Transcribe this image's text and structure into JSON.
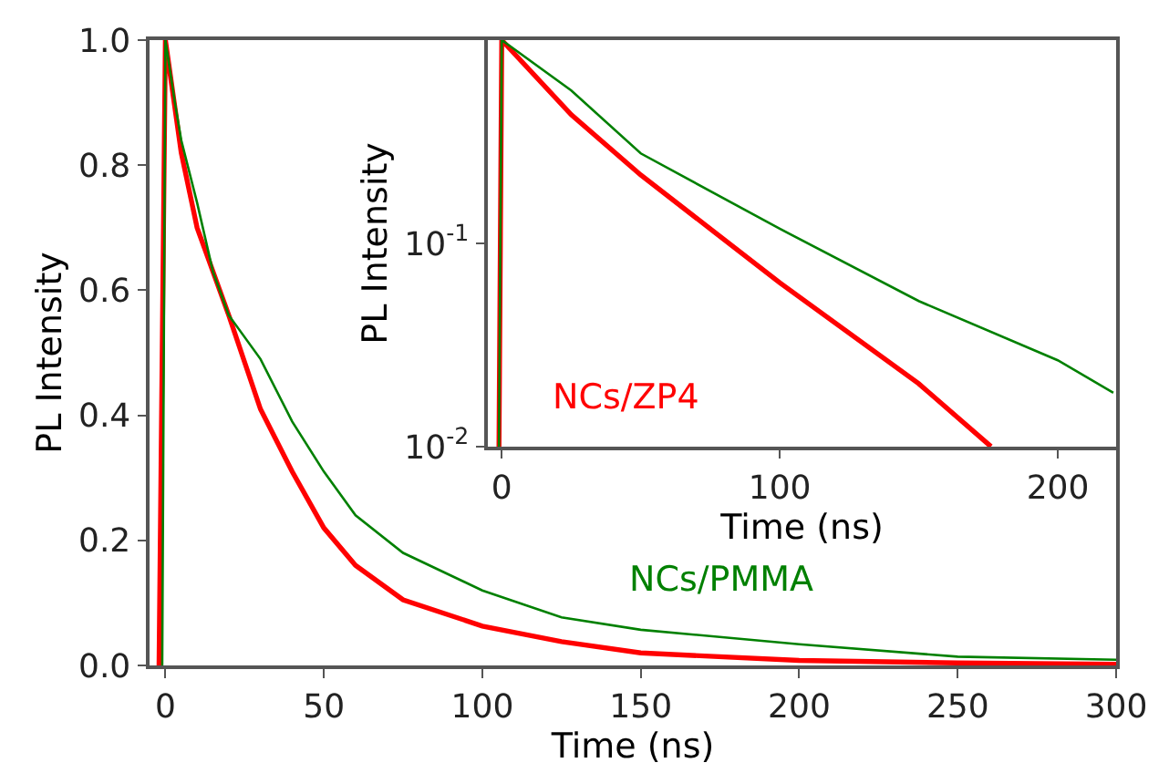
{
  "chart_data": [
    {
      "type": "line",
      "xlabel": "Time (ns)",
      "ylabel": "PL Intensity",
      "xlim": [
        -5,
        300
      ],
      "ylim": [
        0,
        1
      ],
      "xticks": [
        0,
        50,
        100,
        150,
        200,
        250,
        300
      ],
      "yticks": [
        {
          "value": 0,
          "label": "0.0"
        },
        {
          "value": 0.2,
          "label": "0.2"
        },
        {
          "value": 0.4,
          "label": "0.4"
        },
        {
          "value": 0.6,
          "label": "0.6"
        },
        {
          "value": 0.8,
          "label": "0.8"
        },
        {
          "value": 1,
          "label": "1.0"
        }
      ],
      "marker": "none",
      "series": [
        {
          "color": "#ff0000",
          "x": [
            -2,
            0,
            5,
            10,
            20,
            30,
            40,
            50,
            60,
            75,
            100,
            125,
            150,
            200,
            250,
            300
          ],
          "values": [
            0,
            1,
            0.82,
            0.7,
            0.56,
            0.41,
            0.31,
            0.22,
            0.16,
            0.105,
            0.063,
            0.038,
            0.02,
            0.008,
            0.004,
            0.002
          ]
        },
        {
          "name": "NCs/PMMA",
          "color": "#008000",
          "x": [
            -1,
            0,
            3,
            5,
            10,
            15,
            20,
            30,
            40,
            50,
            60,
            75,
            100,
            125,
            150,
            200,
            250,
            300
          ],
          "values": [
            0,
            1,
            0.9,
            0.84,
            0.74,
            0.63,
            0.56,
            0.49,
            0.39,
            0.31,
            0.24,
            0.18,
            0.12,
            0.077,
            0.057,
            0.034,
            0.014,
            0.009
          ]
        }
      ]
    },
    {
      "type": "line",
      "xlabel": "Time (ns)",
      "ylabel": "PL Intensity",
      "xlim": [
        -5,
        221
      ],
      "ylim": [
        0.01,
        1
      ],
      "log": "y",
      "xticks": [
        0,
        100,
        200
      ],
      "yticks": [
        {
          "value": 0.1,
          "label": "10$^{-1}$"
        },
        {
          "value": 0.01,
          "label": "10$^{-2}$"
        }
      ],
      "marker": "none",
      "series": [
        {
          "name": "NCs/ZP4",
          "color": "#ff0000",
          "x": [
            -1,
            0,
            25,
            50,
            100,
            150,
            176
          ],
          "values": [
            0.01,
            1,
            0.43,
            0.217,
            0.064,
            0.0204,
            0.01
          ]
        },
        {
          "color": "#008000",
          "x": [
            -1,
            0,
            25,
            50,
            100,
            150,
            200,
            220
          ],
          "values": [
            0.01,
            1,
            0.565,
            0.277,
            0.118,
            0.052,
            0.0266,
            0.0184
          ]
        }
      ]
    }
  ]
}
